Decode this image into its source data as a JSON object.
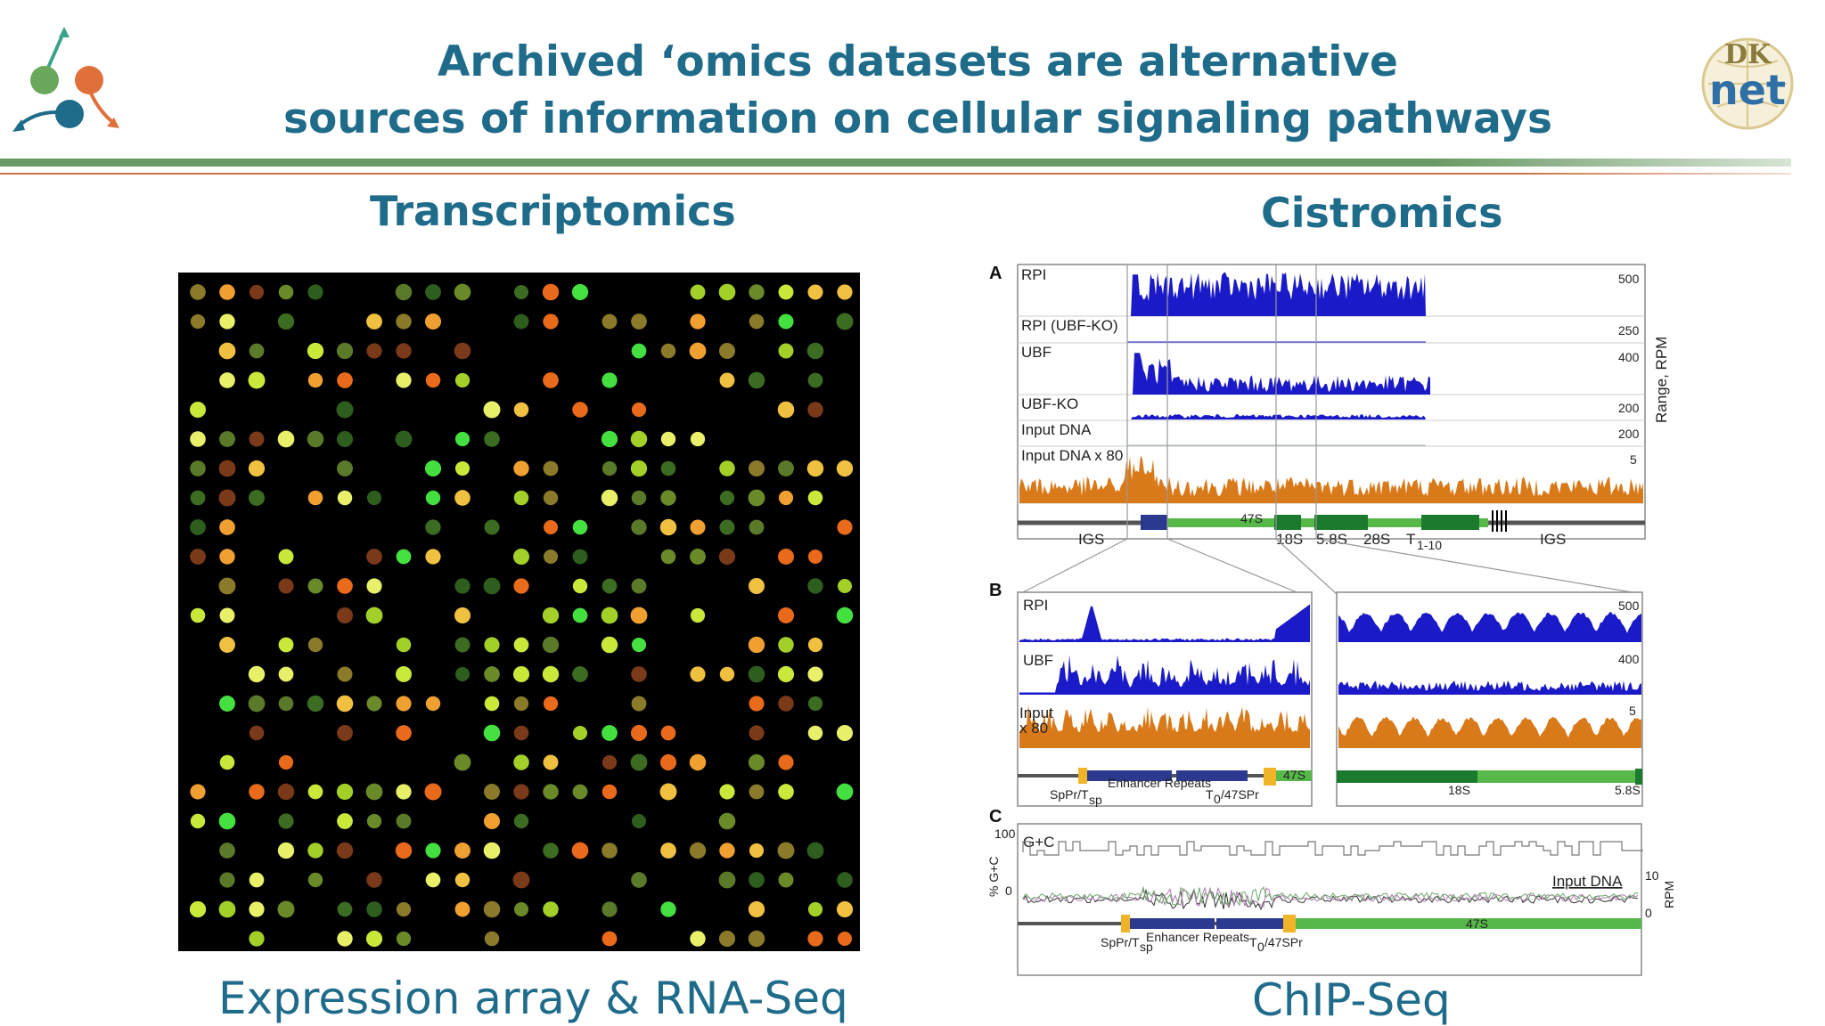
{
  "slide": {
    "title_line1": "Archived ‘omics datasets are alternative",
    "title_line2": "sources of information on cellular signaling pathways",
    "left_heading": "Transcriptomics",
    "right_heading": "Cistromics",
    "left_caption": "Expression array & RNA-Seq",
    "right_caption": "ChIP-Seq",
    "logo_right_text_top": "DK",
    "logo_right_text_bottom": "net"
  },
  "colors": {
    "title": "#1f6b8a",
    "rule_green": "#6a9a64",
    "rule_orange": "#c9734a",
    "chip_blue": "#1a1ac8",
    "chip_orange": "#d97a1a",
    "gene_green": "#55b848",
    "gene_dark_green": "#1c7a2e",
    "repeat_blue": "#2b3a8f",
    "promoter_yellow": "#f0b429"
  },
  "chip_figure": {
    "panelA": {
      "label": "A",
      "tracks": [
        "RPI",
        "RPI (UBF-KO)",
        "UBF",
        "UBF-KO",
        "Input DNA",
        "Input DNA x 80"
      ],
      "ranges": [
        "500",
        "250",
        "400",
        "200",
        "200",
        "5"
      ],
      "range_axis": "Range, RPM",
      "gene_labels": [
        "IGS",
        "47S",
        "18S",
        "5.8S",
        "28S",
        "T",
        "1-10",
        "IGS"
      ]
    },
    "panelB": {
      "label": "B",
      "tracks_left": [
        "RPI",
        "UBF",
        "Input",
        "x 80"
      ],
      "ranges_right": [
        "500",
        "400",
        "5"
      ],
      "left_gene_labels": [
        "SpPr/T",
        "sp",
        "Enhancer Repeats",
        "T",
        "0",
        "/47SPr",
        "47S"
      ],
      "right_gene_labels": [
        "18S",
        "5.8S"
      ]
    },
    "panelC": {
      "label": "C",
      "y_left_axis": "% G+C",
      "y_left_ticks": [
        "100",
        "0"
      ],
      "gc_label": "G+C",
      "input_label": "Input DNA",
      "y_right_axis": "RPM",
      "y_right_ticks": [
        "10",
        "0"
      ],
      "gene_labels": [
        "SpPr/T",
        "sp",
        "Enhancer Repeats",
        "T",
        "0",
        "/47SPr",
        "47S"
      ]
    }
  }
}
